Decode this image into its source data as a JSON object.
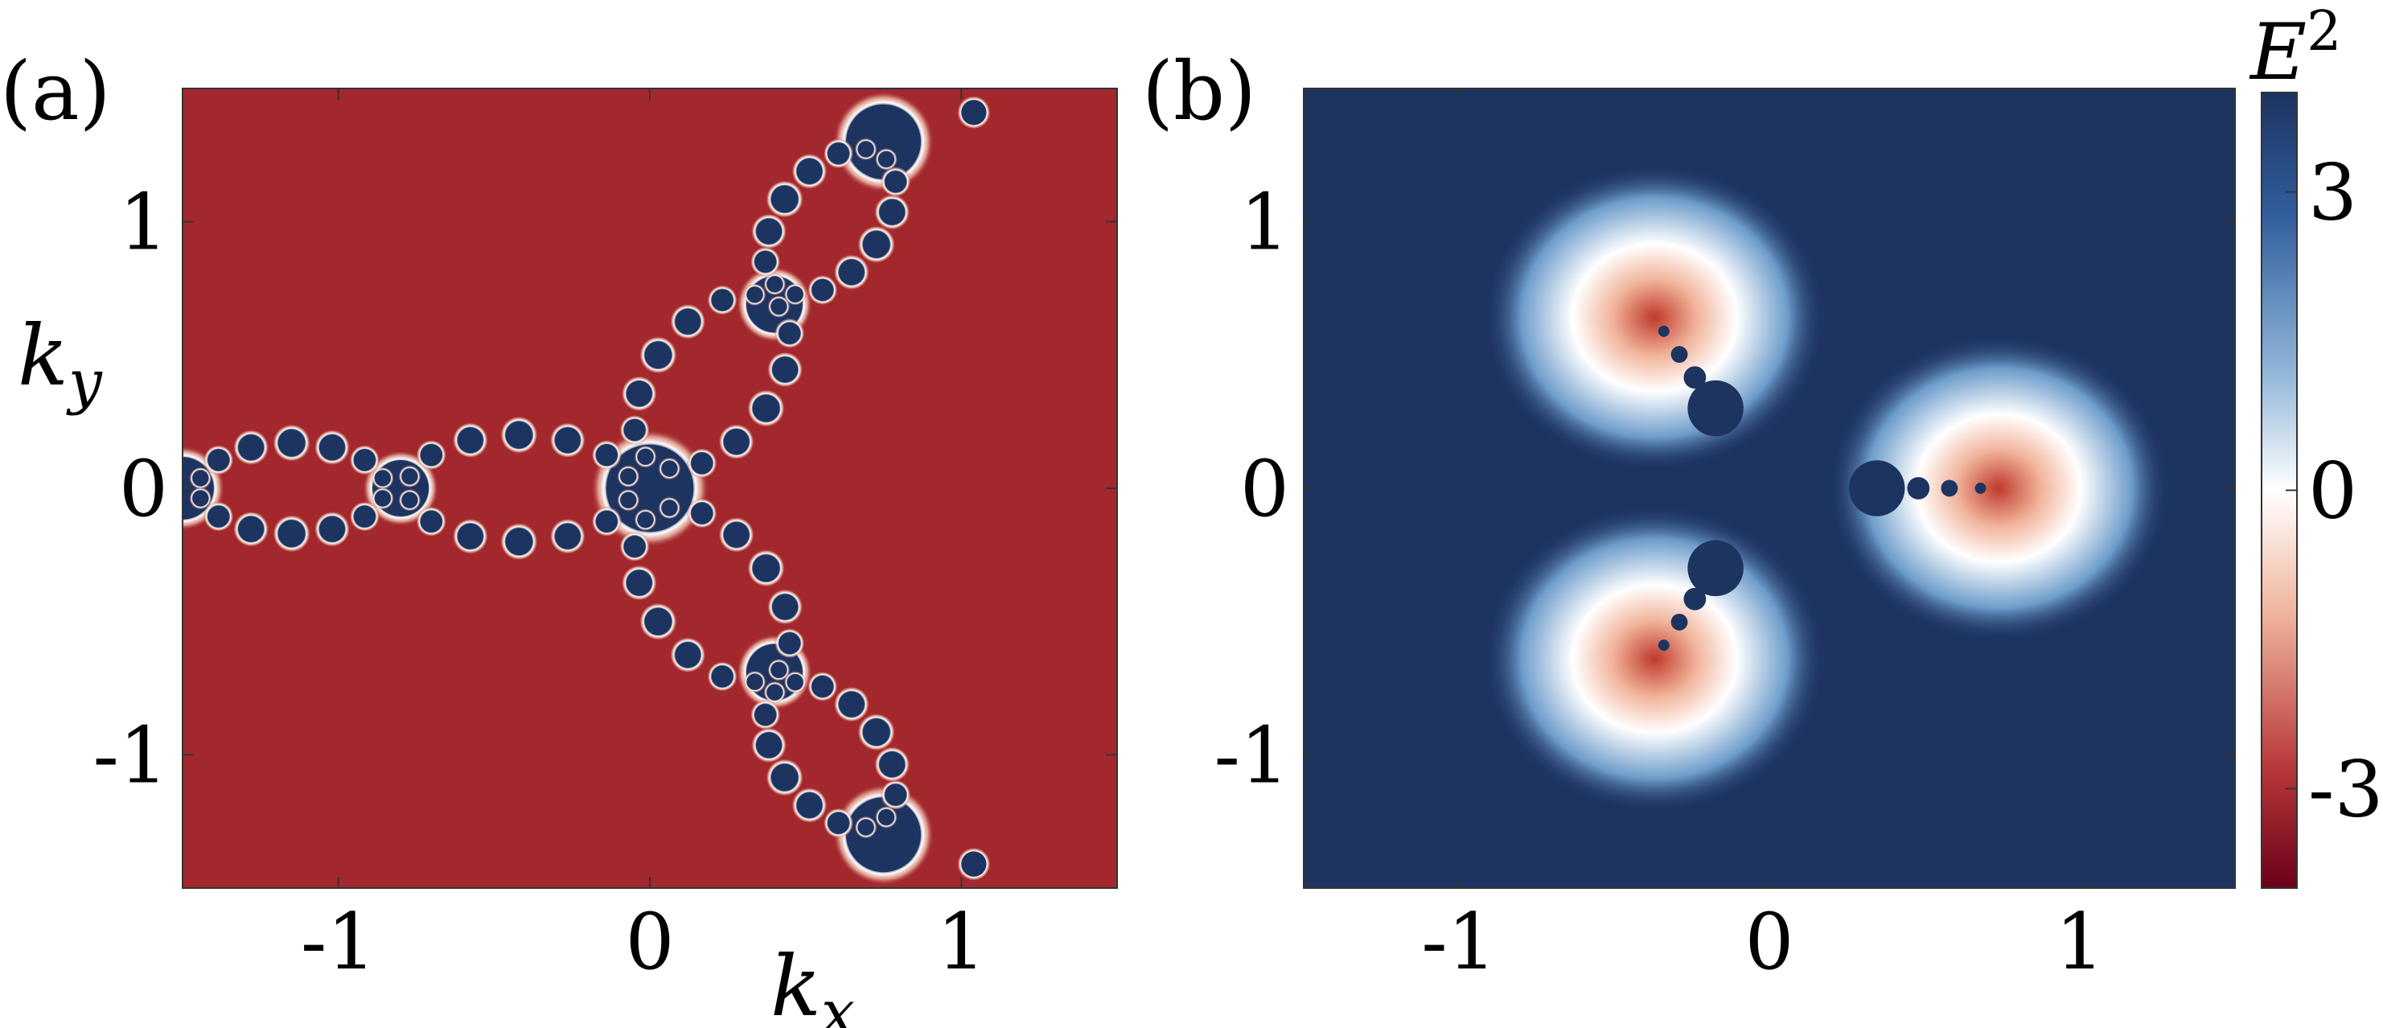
{
  "colors": {
    "negative": "#a3282e",
    "positive": "#1d3461",
    "neutral": "#ffffff",
    "dark_red": "#6b0018",
    "light_red": "#f4c6b0",
    "light_blue": "#c7dbeb",
    "blue_mid": "#3a6fb0"
  },
  "chart_data": [
    {
      "type": "heatmap",
      "panel": "(a)",
      "xlabel": "k_x",
      "ylabel": "k_y",
      "xlim": [
        -1.5,
        1.5
      ],
      "ylim": [
        -1.5,
        1.5
      ],
      "xticks": [
        -1,
        0,
        1
      ],
      "xtick_labels": [
        "-1",
        "0",
        "1"
      ],
      "yticks": [
        -1,
        0,
        1
      ],
      "ytick_labels": [
        "-1",
        "0",
        "1"
      ],
      "background_value": -3.4,
      "symmetry": "three-fold fractal pattern of positive disks along directions 0°, 120°, 240°",
      "main_disks": [
        {
          "x": 0.0,
          "y": 0.0,
          "r": 0.14,
          "value": 3.5
        },
        {
          "x": -0.8,
          "y": 0.0,
          "r": 0.09,
          "value": 3.5
        },
        {
          "x": -1.5,
          "y": 0.0,
          "r": 0.1,
          "value": 3.5
        },
        {
          "x": 0.4,
          "y": 0.69,
          "r": 0.09,
          "value": 3.5
        },
        {
          "x": 0.4,
          "y": -0.69,
          "r": 0.09,
          "value": 3.5
        },
        {
          "x": 0.75,
          "y": 1.3,
          "r": 0.12,
          "value": 3.5
        },
        {
          "x": 0.75,
          "y": -1.3,
          "r": 0.12,
          "value": 3.5
        },
        {
          "x": 1.04,
          "y": 1.41,
          "r": 0.04,
          "value": 3.5
        },
        {
          "x": 1.04,
          "y": -1.41,
          "r": 0.04,
          "value": 3.5
        }
      ]
    },
    {
      "type": "heatmap",
      "panel": "(b)",
      "xlim": [
        -1.5,
        1.5
      ],
      "ylim": [
        -1.5,
        1.5
      ],
      "xticks": [
        -1,
        0,
        1
      ],
      "xtick_labels": [
        "-1",
        "0",
        "1"
      ],
      "yticks": [
        -1,
        0,
        1
      ],
      "ytick_labels": [
        "-1",
        "0",
        "1"
      ],
      "background_value": 3.5,
      "symmetry": "three lobes at angles 0°, 120°, 240° with negative minima near radius 0.95",
      "lobes": [
        {
          "angle_deg": 0,
          "center_r": 0.88,
          "radius": 0.55,
          "minimum_value": -3.0
        },
        {
          "angle_deg": 120,
          "center_r": 0.88,
          "radius": 0.55,
          "minimum_value": -3.0
        },
        {
          "angle_deg": 240,
          "center_r": 0.88,
          "radius": 0.55,
          "minimum_value": -3.0
        }
      ],
      "colorbar": {
        "title": "E^2",
        "range": [
          -4,
          4
        ],
        "ticks": [
          3,
          0,
          -3
        ],
        "tick_labels": [
          "3",
          "0",
          "-3"
        ]
      }
    }
  ],
  "labels": {
    "panel_a": "(a)",
    "panel_b": "(b)",
    "xlabel_base": "k",
    "xlabel_sub": "x",
    "ylabel_base": "k",
    "ylabel_sub": "y",
    "cbar_base": "E",
    "cbar_sup": "2"
  }
}
